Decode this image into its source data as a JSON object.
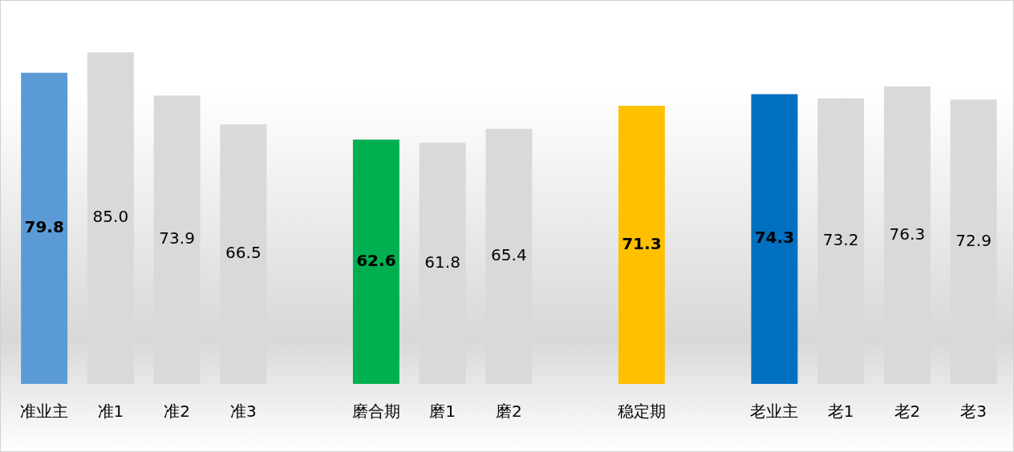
{
  "chart_data": {
    "type": "bar",
    "categories": [
      "准业主",
      "准1",
      "准2",
      "准3",
      null,
      "磨合期",
      "磨1",
      "磨2",
      null,
      "稳定期",
      null,
      "老业主",
      "老1",
      "老2",
      "老3"
    ],
    "values": [
      79.8,
      85.0,
      73.9,
      66.5,
      null,
      62.6,
      61.8,
      65.4,
      null,
      71.3,
      null,
      74.3,
      73.2,
      76.3,
      72.9
    ],
    "value_labels": [
      "79.8",
      "85.0",
      "73.9",
      "66.5",
      null,
      "62.6",
      "61.8",
      "65.4",
      null,
      "71.3",
      null,
      "74.3",
      "73.2",
      "76.3",
      "72.9"
    ],
    "colors": [
      "#5b9bd5",
      "#d9d9d9",
      "#d9d9d9",
      "#d9d9d9",
      "#d9d9d9",
      "#00b050",
      "#d9d9d9",
      "#d9d9d9",
      "#d9d9d9",
      "#ffc000",
      "#d9d9d9",
      "#0070c0",
      "#d9d9d9",
      "#d9d9d9",
      "#d9d9d9"
    ],
    "grid": false,
    "legend": false
  }
}
